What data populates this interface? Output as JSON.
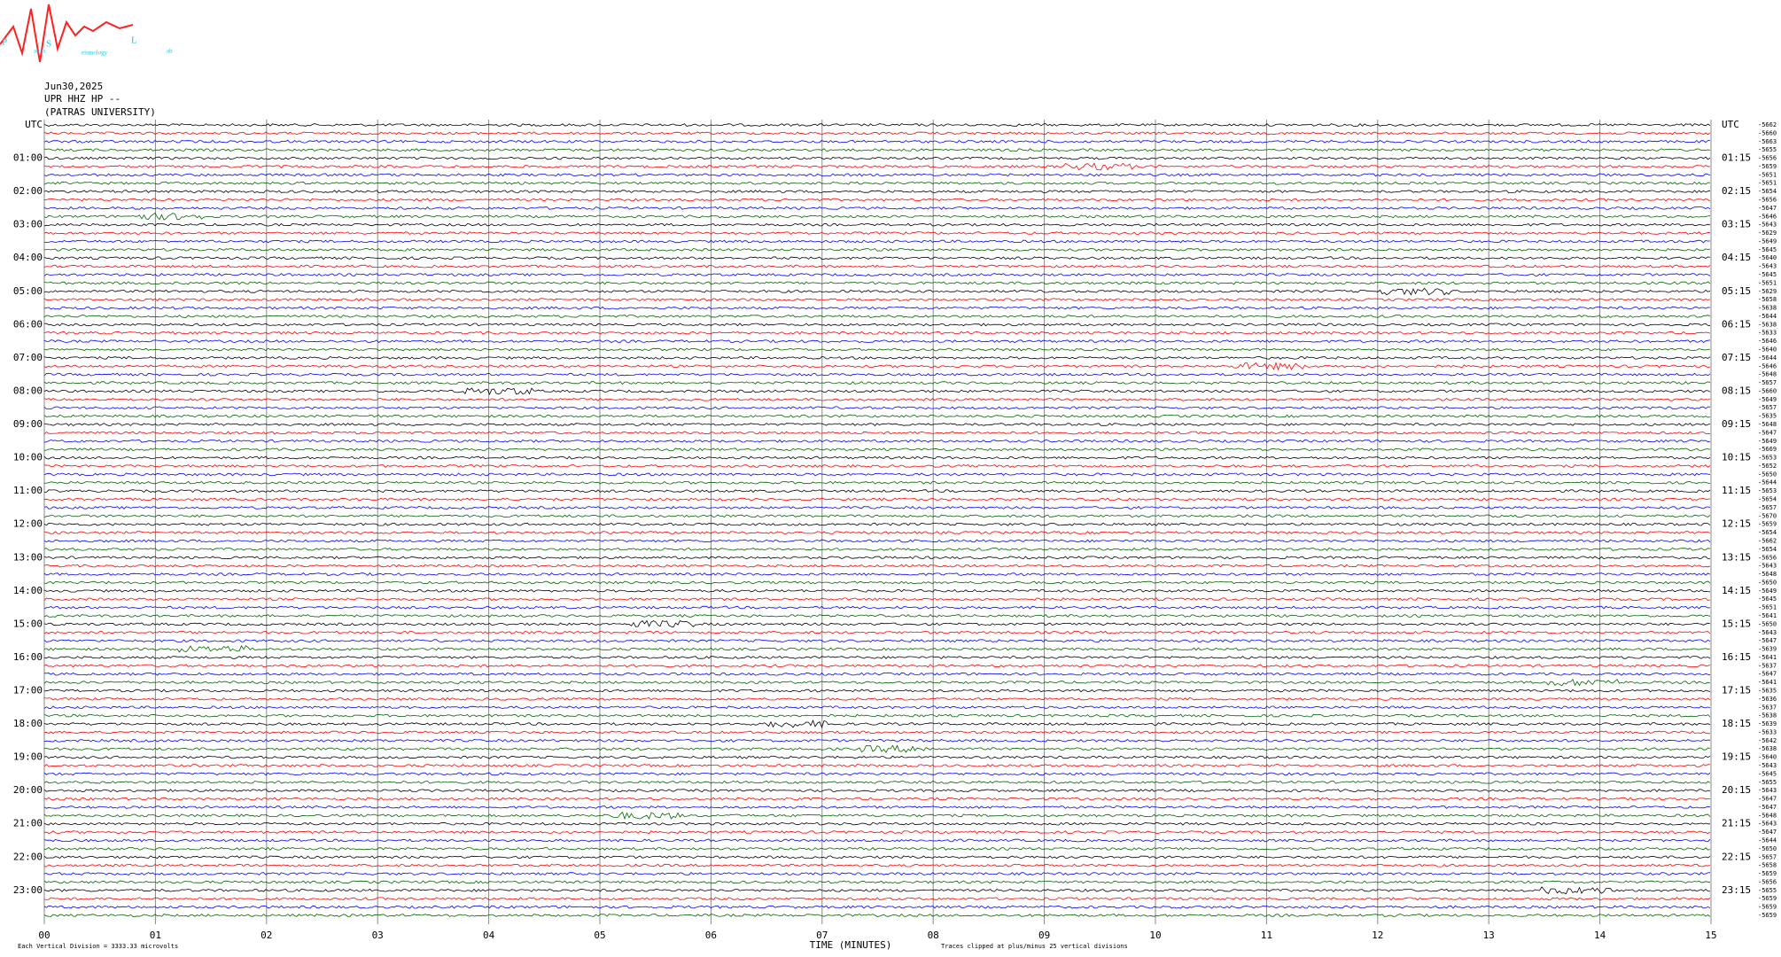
{
  "logo": {
    "letters": [
      "P",
      "S",
      "L"
    ],
    "small": [
      "atras",
      "eismology",
      "ab"
    ]
  },
  "chart_data": {
    "type": "helicorder",
    "header": [
      "Jun30,2025",
      "UPR HHZ HP --",
      "(PATRAS UNIVERSITY)"
    ],
    "left_labels": [
      "UTC",
      "01:00",
      "02:00",
      "03:00",
      "04:00",
      "05:00",
      "06:00",
      "07:00",
      "08:00",
      "09:00",
      "10:00",
      "11:00",
      "12:00",
      "13:00",
      "14:00",
      "15:00",
      "16:00",
      "17:00",
      "18:00",
      "19:00",
      "20:00",
      "21:00",
      "22:00",
      "23:00"
    ],
    "right_labels": [
      "UTC",
      "01:15",
      "02:15",
      "03:15",
      "04:15",
      "05:15",
      "06:15",
      "07:15",
      "08:15",
      "09:15",
      "10:15",
      "11:15",
      "12:15",
      "13:15",
      "14:15",
      "15:15",
      "16:15",
      "17:15",
      "18:15",
      "19:15",
      "20:15",
      "21:15",
      "22:15",
      "23:15"
    ],
    "row_offsets": [
      -5662,
      -5660,
      -5663,
      -5655,
      -5656,
      -5659,
      -5651,
      -5651,
      -5654,
      -5656,
      -5647,
      -5646,
      -5643,
      -5629,
      -5649,
      -5645,
      -5640,
      -5643,
      -5645,
      -5651,
      -5629,
      -5658,
      -5638,
      -5644,
      -5638,
      -5633,
      -5646,
      -5640,
      -5644,
      -5646,
      -5648,
      -5657,
      -5660,
      -5649,
      -5657,
      -5635,
      -5648,
      -5647,
      -5649,
      -5669,
      -5653,
      -5652,
      -5650,
      -5644,
      -5653,
      -5654,
      -5657,
      -5670,
      -5659,
      -5654,
      -5662,
      -5654,
      -5656,
      -5643,
      -5648,
      -5650,
      -5649,
      -5645,
      -5651,
      -5641,
      -5650,
      -5643,
      -5647,
      -5639,
      -5641,
      -5637,
      -5647,
      -5641,
      -5635,
      -5636,
      -5637,
      -5638,
      -5639,
      -5633,
      -5642,
      -5638,
      -5640,
      -5643,
      -5645,
      -5655,
      -5643,
      -5647,
      -5647,
      -5648,
      -5643,
      -5647,
      -5644,
      -5650,
      -5657,
      -5658,
      -5659,
      -5656,
      -5655,
      -5659,
      -5659,
      -5659
    ],
    "trace_colors": [
      "#000000",
      "#ff0000",
      "#0000ff",
      "#006400"
    ],
    "xlim": [
      0,
      15
    ],
    "xticks": [
      {
        "value": 0,
        "label": "00"
      },
      {
        "value": 1,
        "label": "01"
      },
      {
        "value": 2,
        "label": "02"
      },
      {
        "value": 3,
        "label": "03"
      },
      {
        "value": 4,
        "label": "04"
      },
      {
        "value": 5,
        "label": "05"
      },
      {
        "value": 6,
        "label": "06"
      },
      {
        "value": 7,
        "label": "07"
      },
      {
        "value": 8,
        "label": "08"
      },
      {
        "value": 9,
        "label": "09"
      },
      {
        "value": 10,
        "label": "10"
      },
      {
        "value": 11,
        "label": "11"
      },
      {
        "value": 12,
        "label": "12"
      },
      {
        "value": 13,
        "label": "13"
      },
      {
        "value": 14,
        "label": "14"
      },
      {
        "value": 15,
        "label": "15"
      }
    ],
    "xlabel": "TIME (MINUTES)",
    "footer_left": "Each Vertical Division = 3333.33 microvolts",
    "footer_right": "Traces clipped at plus/minus 25 vertical divisions"
  }
}
